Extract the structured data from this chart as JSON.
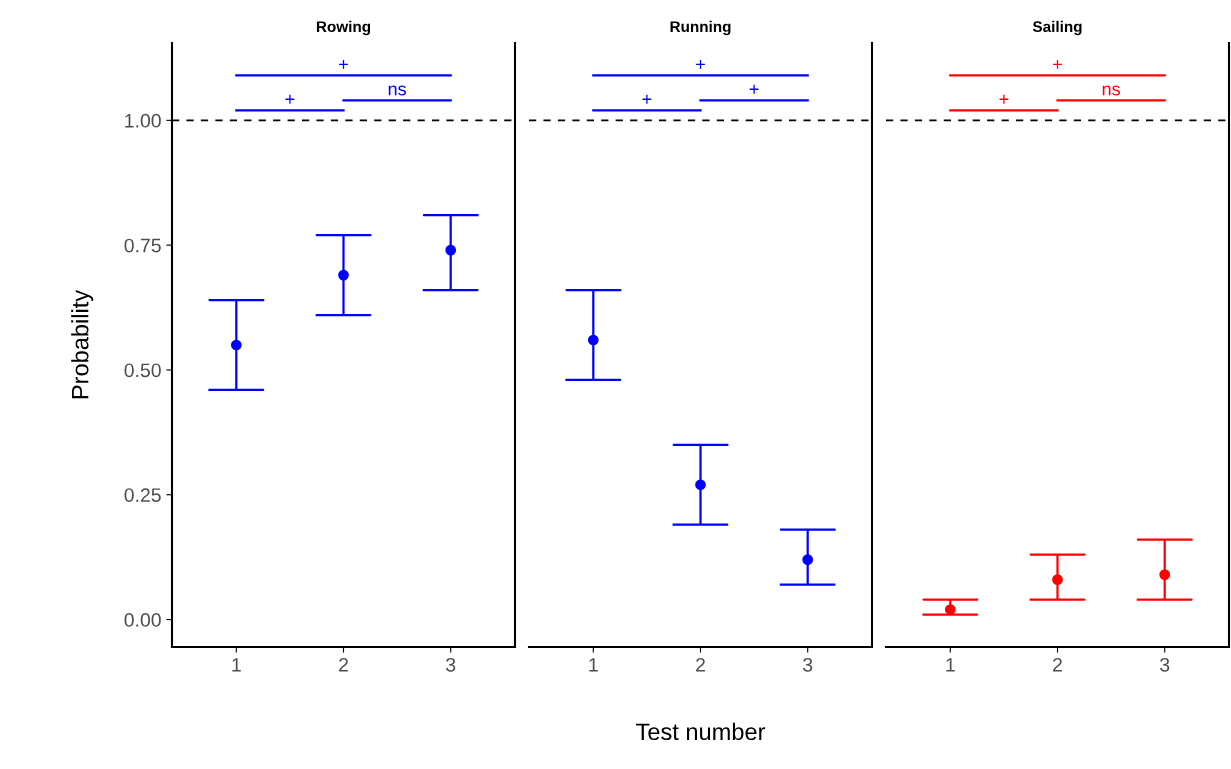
{
  "chart_data": [
    {
      "type": "scatter",
      "title": "Rowing",
      "ylabel": "Probability",
      "x": [
        1,
        2,
        3
      ],
      "xlim": [
        0.4,
        3.6
      ],
      "xticks": [
        1,
        2,
        3
      ],
      "ylim": [
        -0.055,
        1.155
      ],
      "yticks": [
        {
          "value": 0,
          "label": "0.00"
        },
        {
          "value": 0.25,
          "label": "0.25"
        },
        {
          "value": 0.5,
          "label": "0.50"
        },
        {
          "value": 0.75,
          "label": "0.75"
        },
        {
          "value": 1,
          "label": "1.00"
        }
      ],
      "marker": "circle",
      "grid": false,
      "ref_lines": [
        {
          "axis": "y",
          "value": 1,
          "color": "#000000",
          "line_style": "dashed"
        }
      ],
      "annotations": [
        "+",
        "ns",
        "+"
      ],
      "series": [
        {
          "color": "#0000ff",
          "values": [
            0.55,
            0.69,
            0.74
          ],
          "errors": [
            [
              0.46,
              0.64
            ],
            [
              0.61,
              0.77
            ],
            [
              0.66,
              0.81
            ]
          ]
        },
        {
          "type": "line",
          "color": "#0000ff",
          "marker": "none",
          "x": [
            1,
            2
          ],
          "values": [
            1.02,
            1.02
          ]
        },
        {
          "type": "line",
          "color": "#0000ff",
          "marker": "none",
          "x": [
            2,
            3
          ],
          "values": [
            1.04,
            1.04
          ]
        },
        {
          "type": "line",
          "color": "#0000ff",
          "marker": "none",
          "x": [
            1,
            3
          ],
          "values": [
            1.09,
            1.09
          ]
        }
      ]
    },
    {
      "type": "scatter",
      "title": "Running",
      "xlabel": "Test number",
      "x": [
        1,
        2,
        3
      ],
      "xlim": [
        0.4,
        3.6
      ],
      "xticks": [
        1,
        2,
        3
      ],
      "ylim": [
        -0.055,
        1.155
      ],
      "tick_labels": "x",
      "marker": "circle",
      "grid": false,
      "ref_lines": [
        {
          "axis": "y",
          "value": 1,
          "color": "#000000",
          "line_style": "dashed"
        }
      ],
      "annotations": [
        "+",
        "+",
        "+"
      ],
      "series": [
        {
          "color": "#0000ff",
          "values": [
            0.56,
            0.27,
            0.12
          ],
          "errors": [
            [
              0.48,
              0.66
            ],
            [
              0.19,
              0.35
            ],
            [
              0.07,
              0.18
            ]
          ]
        },
        {
          "type": "line",
          "color": "#0000ff",
          "marker": "none",
          "x": [
            1,
            2
          ],
          "values": [
            1.02,
            1.02
          ]
        },
        {
          "type": "line",
          "color": "#0000ff",
          "marker": "none",
          "x": [
            2,
            3
          ],
          "values": [
            1.04,
            1.04
          ]
        },
        {
          "type": "line",
          "color": "#0000ff",
          "marker": "none",
          "x": [
            1,
            3
          ],
          "values": [
            1.09,
            1.09
          ]
        }
      ]
    },
    {
      "type": "scatter",
      "title": "Sailing",
      "x": [
        1,
        2,
        3
      ],
      "xlim": [
        0.4,
        3.6
      ],
      "xticks": [
        1,
        2,
        3
      ],
      "ylim": [
        -0.055,
        1.155
      ],
      "tick_labels": "x",
      "marker": "circle",
      "grid": false,
      "ref_lines": [
        {
          "axis": "y",
          "value": 1,
          "color": "#000000",
          "line_style": "dashed"
        }
      ],
      "annotations": [
        "+",
        "ns",
        "+"
      ],
      "series": [
        {
          "color": "#ff0000",
          "values": [
            0.02,
            0.08,
            0.09
          ],
          "errors": [
            [
              0.01,
              0.04
            ],
            [
              0.04,
              0.13
            ],
            [
              0.04,
              0.16
            ]
          ]
        },
        {
          "type": "line",
          "color": "#ff0000",
          "marker": "none",
          "x": [
            1,
            2
          ],
          "values": [
            1.02,
            1.02
          ]
        },
        {
          "type": "line",
          "color": "#ff0000",
          "marker": "none",
          "x": [
            2,
            3
          ],
          "values": [
            1.04,
            1.04
          ]
        },
        {
          "type": "line",
          "color": "#ff0000",
          "marker": "none",
          "x": [
            1,
            3
          ],
          "values": [
            1.09,
            1.09
          ]
        }
      ]
    }
  ]
}
